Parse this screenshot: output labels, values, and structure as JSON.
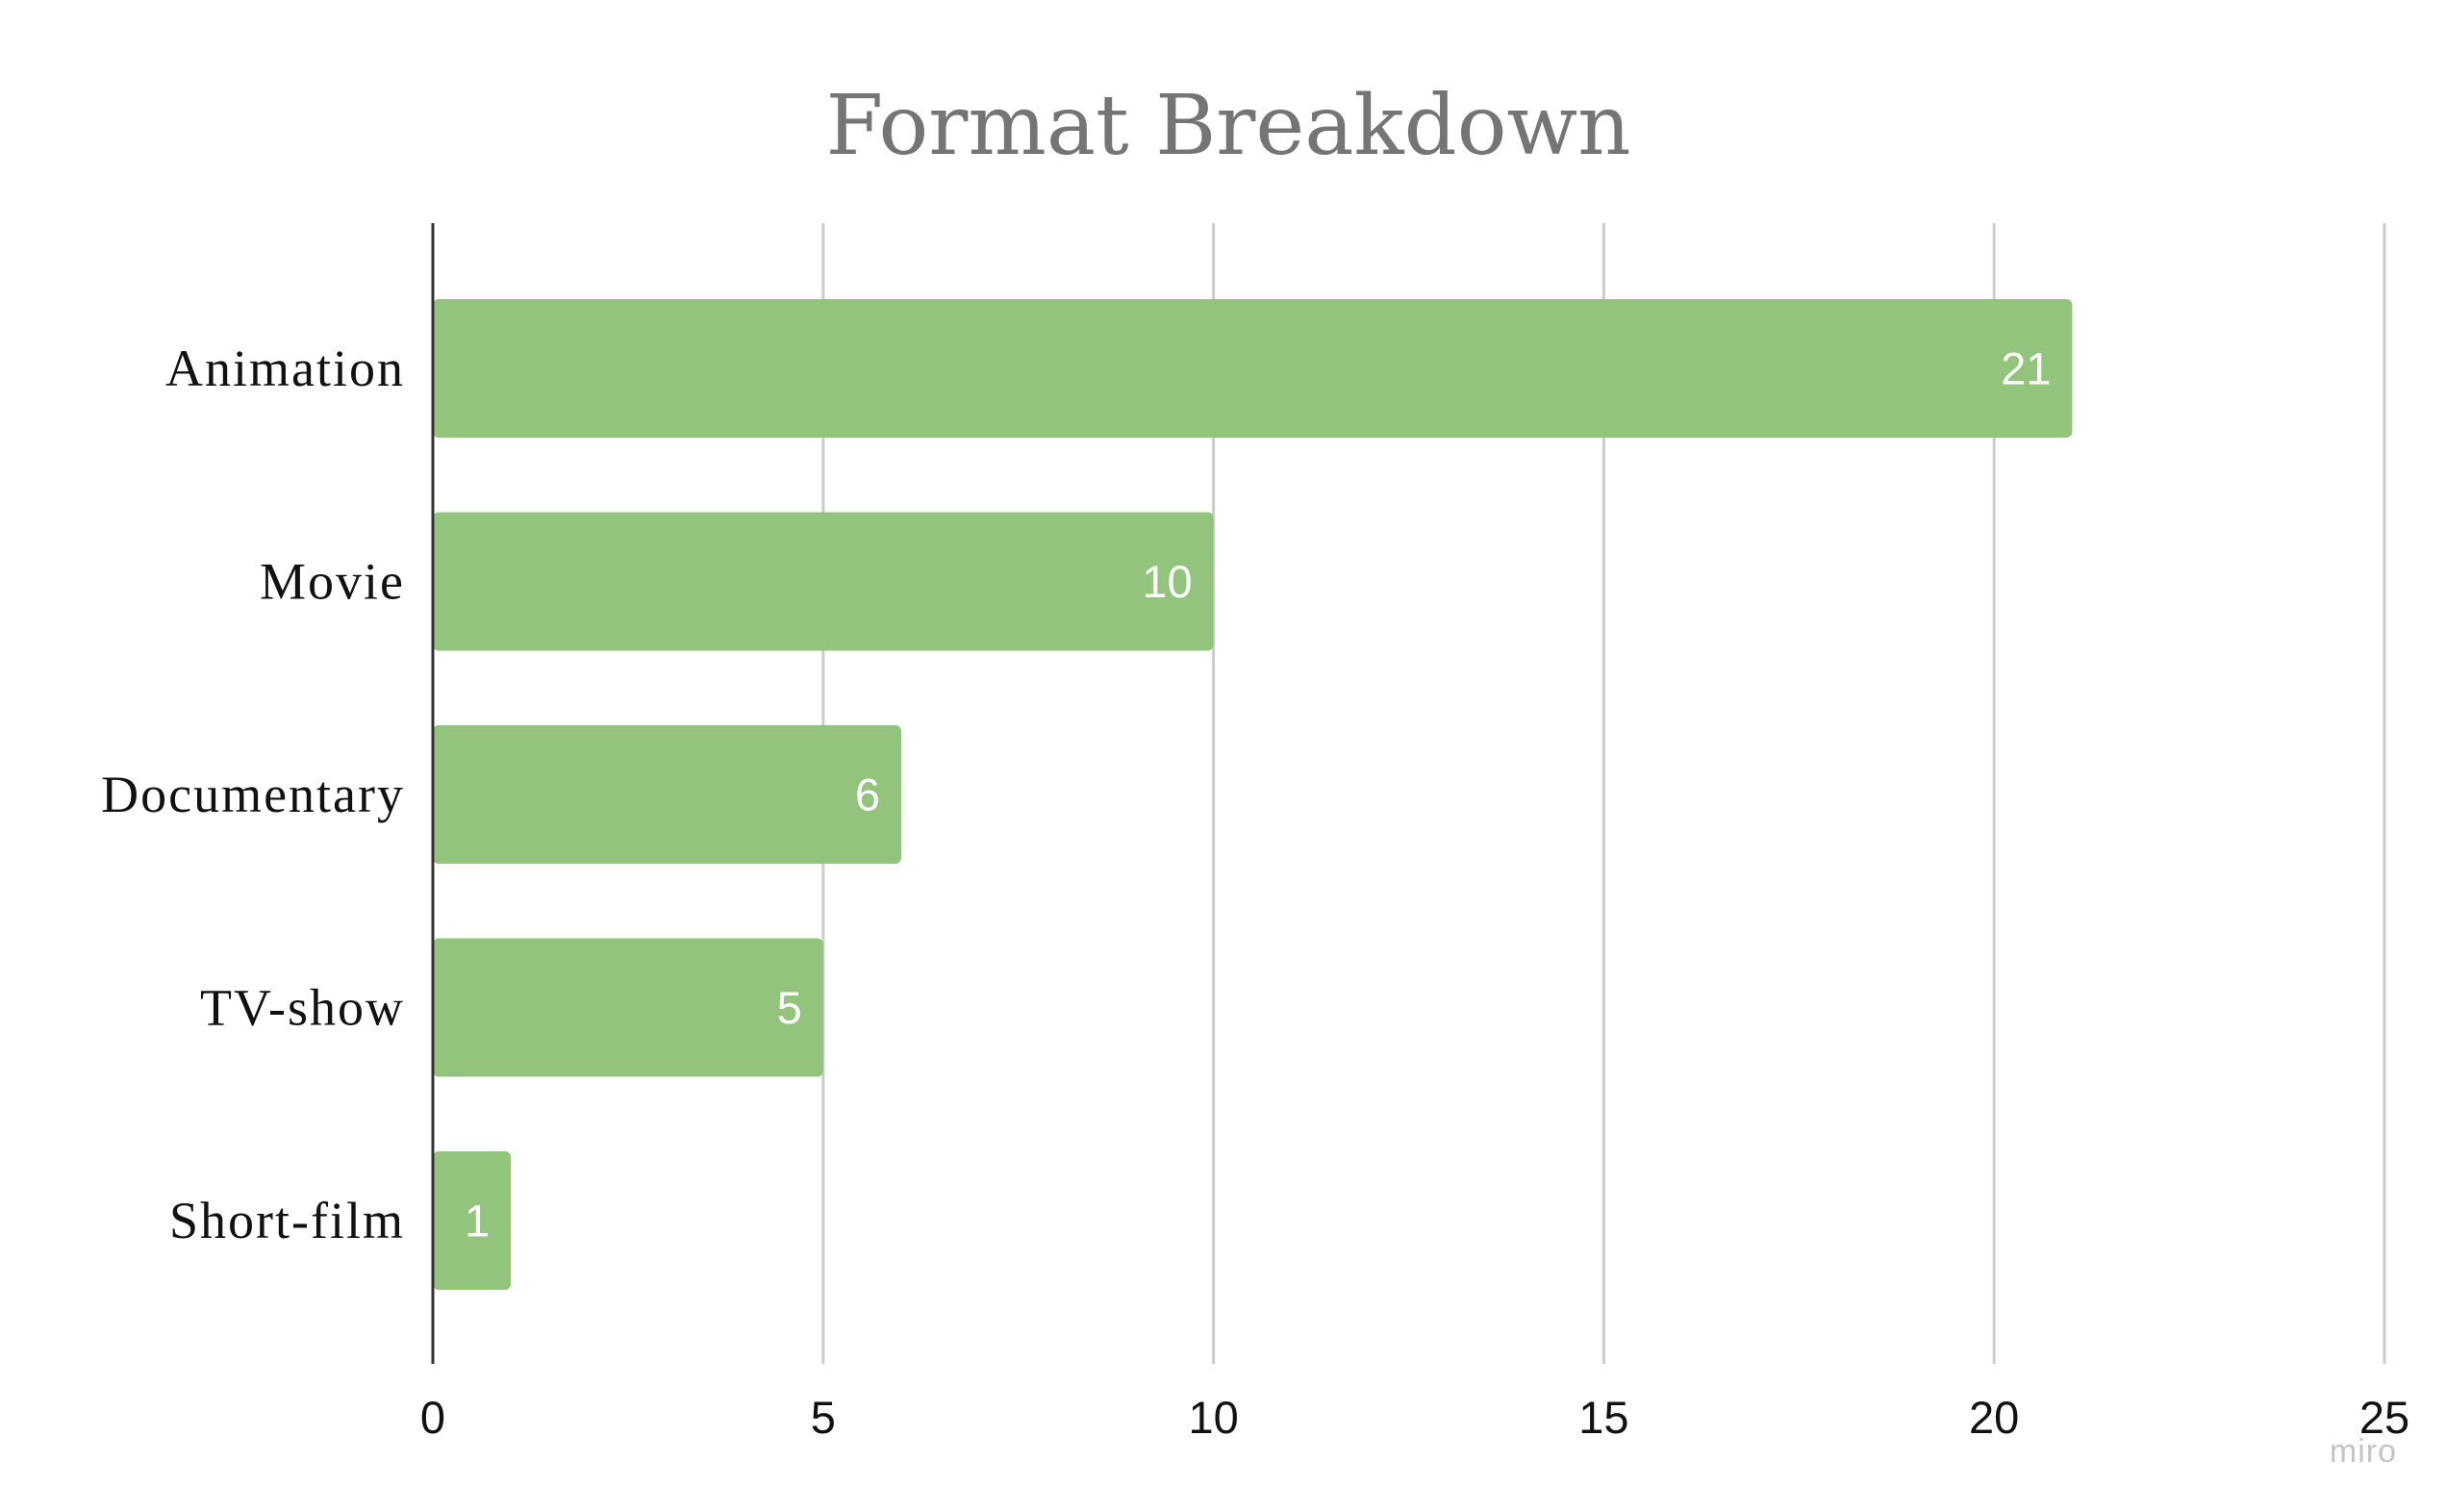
{
  "chart_data": {
    "type": "bar",
    "orientation": "horizontal",
    "title": "Format Breakdown",
    "categories": [
      "Animation",
      "Movie",
      "Documentary",
      "TV-show",
      "Short-film"
    ],
    "values": [
      21,
      10,
      6,
      5,
      1
    ],
    "data_labels": [
      "21",
      "10",
      "6",
      "5",
      "1"
    ],
    "xlim": [
      0,
      25
    ],
    "x_ticks": [
      0,
      5,
      10,
      15,
      20,
      25
    ],
    "x_tick_labels": [
      "0",
      "5",
      "10",
      "15",
      "20",
      "25"
    ],
    "grid": true,
    "legend": "none",
    "bar_color": "#93c47d",
    "data_label_color": "#ffffff"
  },
  "watermark": "miro"
}
